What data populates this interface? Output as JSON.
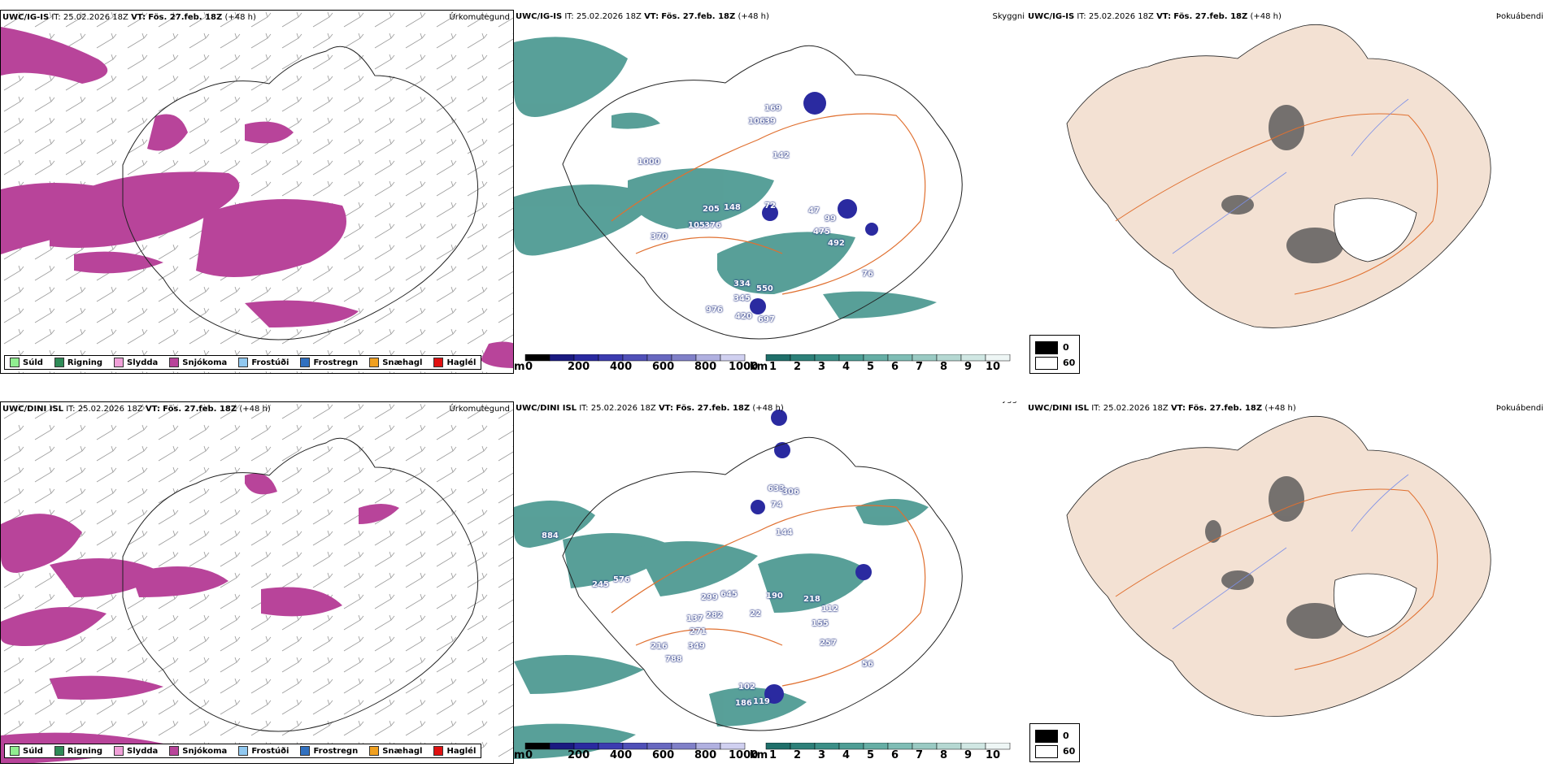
{
  "rows": [
    {
      "model": "UWC/IG-IS",
      "it_label": "IT:",
      "it": "25.02.2026 18Z",
      "vt_label": "VT:",
      "vt": "Fös. 27.feb. 18Z",
      "lead": "(+48 h)",
      "precip_labels": [
        {
          "text": "1000"
        },
        {
          "text": "169"
        },
        {
          "text": "106"
        },
        {
          "text": "39"
        },
        {
          "text": "142"
        },
        {
          "text": "205"
        },
        {
          "text": "148"
        },
        {
          "text": "72"
        },
        {
          "text": "47"
        },
        {
          "text": "99"
        },
        {
          "text": "370"
        },
        {
          "text": "105"
        },
        {
          "text": "376"
        },
        {
          "text": "475"
        },
        {
          "text": "492"
        },
        {
          "text": "76"
        },
        {
          "text": "334"
        },
        {
          "text": "345"
        },
        {
          "text": "550"
        },
        {
          "text": "976"
        },
        {
          "text": "420"
        },
        {
          "text": "697"
        }
      ]
    },
    {
      "model": "UWC/DINI ISL",
      "it_label": "IT:",
      "it": "25.02.2026 18Z",
      "vt_label": "VT:",
      "vt": "Fös. 27.feb. 18Z",
      "lead": "(+48 h)",
      "precip_labels": [
        {
          "text": "884"
        },
        {
          "text": "633"
        },
        {
          "text": "306"
        },
        {
          "text": "74"
        },
        {
          "text": "144"
        },
        {
          "text": "576"
        },
        {
          "text": "245"
        },
        {
          "text": "645"
        },
        {
          "text": "299"
        },
        {
          "text": "190"
        },
        {
          "text": "218"
        },
        {
          "text": "112"
        },
        {
          "text": "137"
        },
        {
          "text": "282"
        },
        {
          "text": "22"
        },
        {
          "text": "155"
        },
        {
          "text": "271"
        },
        {
          "text": "257"
        },
        {
          "text": "216"
        },
        {
          "text": "349"
        },
        {
          "text": "788"
        },
        {
          "text": "56"
        },
        {
          "text": "102"
        },
        {
          "text": "186"
        },
        {
          "text": "119"
        }
      ]
    }
  ],
  "panel_titles": {
    "precip": "Úrkomutegund",
    "cloud": "Skyggni",
    "fog": "Þokuábendi"
  },
  "precip_legend": [
    {
      "label": "Súld",
      "color": "#90ee90"
    },
    {
      "label": "Rigning",
      "color": "#2e8b57"
    },
    {
      "label": "Slydda",
      "color": "#f0a0d8"
    },
    {
      "label": "Snjókoma",
      "color": "#b8449a"
    },
    {
      "label": "Frostúði",
      "color": "#90c8f0"
    },
    {
      "label": "Frostregn",
      "color": "#3070c0"
    },
    {
      "label": "Snæhagl",
      "color": "#f0a020"
    },
    {
      "label": "Haglél",
      "color": "#e01010"
    }
  ],
  "cloud_base_bar": {
    "unit": "m",
    "ticks": [
      "0",
      "200",
      "400",
      "600",
      "800",
      "1000"
    ],
    "colors": [
      "#000000",
      "#1a1a80",
      "#2a2aa0",
      "#3c3cb0",
      "#5050b8",
      "#6868c0",
      "#8080c8",
      "#9898d0",
      "#b0b0e0",
      "#d0d0f0"
    ]
  },
  "visibility_bar": {
    "unit": "km",
    "ticks": [
      "1",
      "2",
      "3",
      "4",
      "5",
      "6",
      "7",
      "8",
      "9",
      "10"
    ],
    "colors": [
      "#1f6f6a",
      "#2d8079",
      "#3b8f87",
      "#4e9e95",
      "#66aea5",
      "#7fbdb5",
      "#9acac3",
      "#b5d8d2",
      "#d0e7e3",
      "#eef6f5"
    ]
  },
  "fog_key": {
    "top": "0",
    "bottom": "60"
  },
  "colors": {
    "snow": "#b8449a",
    "teal": "#2e8b83",
    "land": "#f3e1d3",
    "roads": "#e07030",
    "rivers": "#7d90e8"
  }
}
